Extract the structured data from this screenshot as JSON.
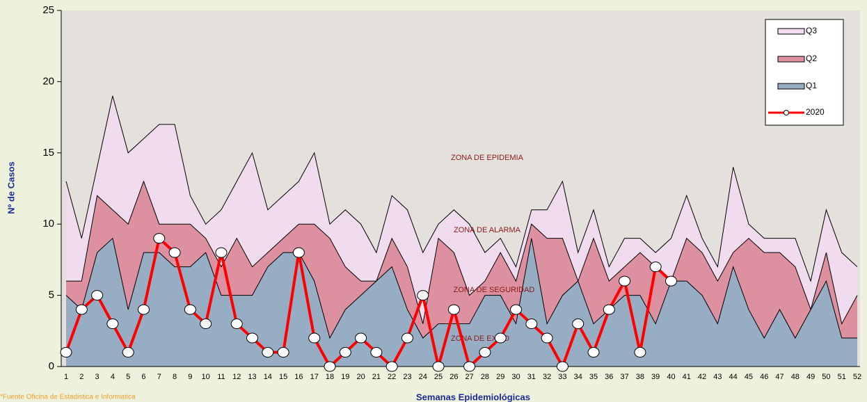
{
  "chart_data": {
    "type": "endemic-channel",
    "categories": [
      1,
      2,
      3,
      4,
      5,
      6,
      7,
      8,
      9,
      10,
      11,
      12,
      13,
      14,
      15,
      16,
      17,
      18,
      19,
      20,
      21,
      22,
      23,
      24,
      25,
      26,
      27,
      28,
      29,
      30,
      31,
      32,
      33,
      34,
      35,
      36,
      37,
      38,
      39,
      40,
      41,
      42,
      43,
      44,
      45,
      46,
      47,
      48,
      49,
      50,
      51,
      52
    ],
    "series": [
      {
        "name": "Q3",
        "color": "#f0dcee",
        "kind": "area",
        "values": [
          13,
          9,
          14,
          19,
          15,
          16,
          17,
          17,
          12,
          10,
          11,
          13,
          15,
          11,
          12,
          13,
          15,
          10,
          11,
          10,
          8,
          12,
          11,
          8,
          10,
          11,
          10,
          8,
          9,
          7,
          11,
          11,
          13,
          8,
          11,
          7,
          9,
          9,
          8,
          9,
          12,
          9,
          7,
          14,
          10,
          9,
          9,
          9,
          6,
          11,
          8,
          7
        ]
      },
      {
        "name": "Q2",
        "color": "#dc90a0",
        "kind": "area",
        "values": [
          6,
          6,
          12,
          11,
          10,
          13,
          10,
          10,
          10,
          9,
          7,
          9,
          7,
          8,
          9,
          10,
          10,
          9,
          7,
          6,
          6,
          9,
          7,
          3,
          9,
          8,
          5,
          6,
          8,
          6,
          10,
          9,
          9,
          6,
          9,
          6,
          7,
          8,
          7,
          6,
          9,
          8,
          6,
          8,
          9,
          8,
          8,
          7,
          4,
          8,
          3,
          5
        ]
      },
      {
        "name": "Q1",
        "color": "#96adc4",
        "kind": "area",
        "values": [
          5,
          4,
          8,
          9,
          4,
          8,
          8,
          7,
          7,
          8,
          5,
          5,
          5,
          7,
          8,
          8,
          6,
          2,
          4,
          5,
          6,
          7,
          4,
          2,
          3,
          3,
          3,
          5,
          5,
          3,
          9,
          3,
          5,
          6,
          3,
          4,
          5,
          5,
          3,
          6,
          6,
          5,
          3,
          7,
          4,
          2,
          4,
          2,
          4,
          6,
          2,
          2
        ]
      },
      {
        "name": "2020",
        "color": "#ff0000",
        "kind": "line",
        "values": [
          1,
          4,
          5,
          3,
          1,
          4,
          9,
          8,
          4,
          3,
          8,
          3,
          2,
          1,
          1,
          8,
          2,
          0,
          1,
          2,
          1,
          0,
          2,
          5,
          0,
          4,
          0,
          1,
          2,
          4,
          3,
          2,
          0,
          3,
          1,
          4,
          6,
          1,
          7,
          6,
          null,
          null,
          null,
          null,
          null,
          null,
          null,
          null,
          null,
          null,
          null,
          null
        ]
      }
    ],
    "ylim": [
      0,
      25
    ],
    "yticks": [
      0,
      5,
      10,
      15,
      20,
      25
    ],
    "xlabel": "Semanas Epidemiológicas",
    "ylabel": "Nº de Casos",
    "annotations": [
      "ZONA DE EPIDEMIA",
      "ZONA DE ALARMA",
      "ZONA DE SEGURIDAD",
      "ZONA DE EXITO"
    ],
    "source": "*Fuente Oficina de Estadistica e Informatica"
  }
}
